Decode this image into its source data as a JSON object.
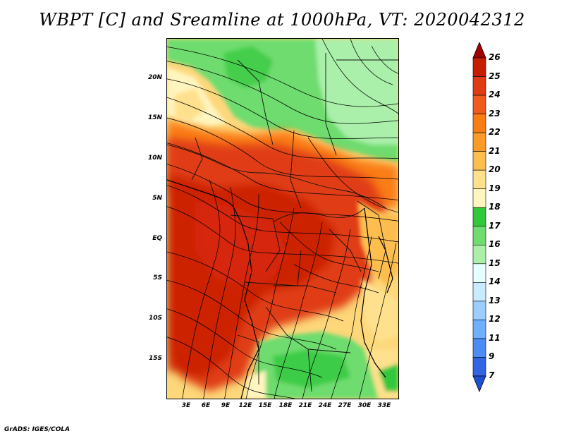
{
  "title": "WBPT [C] and Sreamline at 1000hPa, VT: 2020042312",
  "credit": "GrADS: IGES/COLA",
  "axes": {
    "lat_ticks": [
      "20N",
      "15N",
      "10N",
      "5N",
      "EQ",
      "5S",
      "10S",
      "15S"
    ],
    "lon_ticks": [
      "3E",
      "6E",
      "9E",
      "12E",
      "15E",
      "18E",
      "21E",
      "24E",
      "27E",
      "30E",
      "33E"
    ]
  },
  "colorbar": {
    "labels": [
      "26",
      "25",
      "24",
      "23",
      "22",
      "21",
      "20",
      "19",
      "18",
      "17",
      "16",
      "15",
      "14",
      "13",
      "12",
      "11",
      "9",
      "7"
    ],
    "colors": [
      "#a50000",
      "#c81e00",
      "#e03c14",
      "#f05a1e",
      "#fa7d14",
      "#fc9a28",
      "#fdbe50",
      "#ffe08c",
      "#fff5be",
      "#32c83c",
      "#6edc6e",
      "#aaf0aa",
      "#e6ffff",
      "#c8ebff",
      "#9bcdff",
      "#6eafff",
      "#4b8cf5",
      "#3264e6",
      "#1e50d2"
    ]
  },
  "legend": {
    "field": "Wet-bulb potential temperature [C]",
    "overlay": "Streamlines at 1000hPa"
  }
}
